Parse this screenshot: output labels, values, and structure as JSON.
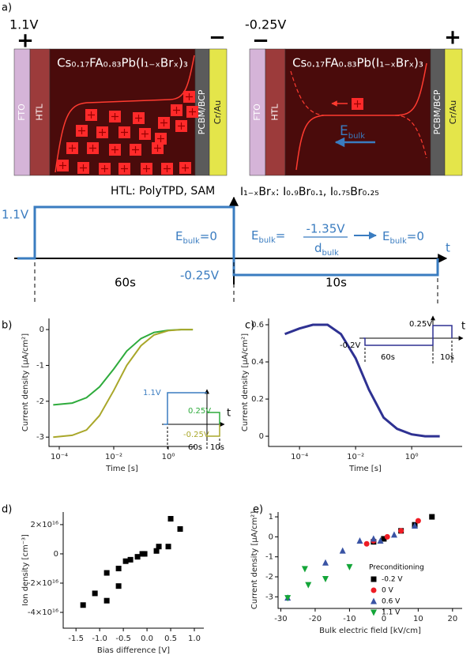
{
  "panel_a": {
    "label": "a)",
    "left_device": {
      "voltage": "1.1V",
      "plus": "+",
      "minus": "−"
    },
    "right_device": {
      "voltage": "-0.25V",
      "plus": "+",
      "minus": "−"
    },
    "layers": {
      "fto": "FTO",
      "htl": "HTL",
      "perovskite": "Cs₀.₁₇FA₀.₈₃Pb(I₁₋ₓBrₓ)₃",
      "etl": "PCBM/BCP",
      "electrode": "Cr/Au"
    },
    "e_field": {
      "symbol": "E",
      "subscript": "bulk"
    },
    "htl_note": "HTL: PolyTPD, SAM",
    "halide_note": "I₁₋ₓBrₓ: I₀.₉Br₀.₁, I₀.₇₅Br₀.₂₅",
    "waveform": {
      "high": "1.1V",
      "low": "-0.25V",
      "e_zero_symbol": "E",
      "e_zero_sub": "bulk",
      "e_zero_rest": "=0",
      "e_eq_symbol": "E",
      "e_eq_sub": "bulk",
      "e_eq_rest": "=",
      "numerator": "-1.35V",
      "den_symbol": "d",
      "den_sub": "bulk",
      "e_zero2_symbol": "E",
      "e_zero2_sub": "bulk",
      "e_zero2_rest": "=0",
      "t": "t",
      "first": "60s",
      "second": "10s"
    }
  },
  "chart_data": [
    {
      "type": "line",
      "panel_label": "b)",
      "x_label": "Time [s]",
      "y_label": "Current density [μA/cm²]",
      "xscale": "log",
      "xlim": [
        4.2e-05,
        9.7
      ],
      "ylim": [
        -3.26,
        0.31
      ],
      "xticks": [
        {
          "value": 0.0001,
          "label": "10⁻⁴"
        },
        {
          "value": 0.01,
          "label": "10⁻²"
        },
        {
          "value": 1,
          "label": "10⁰"
        }
      ],
      "yticks": [
        -3,
        -2,
        -1,
        0
      ],
      "x": [
        6e-05,
        0.0003,
        0.001,
        0.003,
        0.01,
        0.03,
        0.1,
        0.3,
        1,
        3,
        8
      ],
      "series": [
        {
          "color": "#2eab3c",
          "values": [
            -2.1,
            -2.05,
            -1.9,
            -1.6,
            -1.1,
            -0.6,
            -0.25,
            -0.08,
            -0.02,
            0,
            0
          ]
        },
        {
          "color": "#a9a72a",
          "values": [
            -3.0,
            -2.95,
            -2.8,
            -2.4,
            -1.7,
            -1.0,
            -0.45,
            -0.15,
            -0.03,
            0,
            0
          ]
        }
      ],
      "inset_labels": [
        "1.1V",
        "0.25V",
        "-0.25V",
        "60s",
        "10s",
        "t"
      ]
    },
    {
      "type": "line",
      "panel_label": "c)",
      "x_label": "Time [s]",
      "y_label": "Current density [μA/cm²]",
      "xscale": "log",
      "xlim": [
        7.9e-06,
        63
      ],
      "ylim": [
        -0.055,
        0.634
      ],
      "xticks": [
        {
          "value": 0.0001,
          "label": "10⁻⁴"
        },
        {
          "value": 0.01,
          "label": "10⁻²"
        },
        {
          "value": 1,
          "label": "10⁰"
        }
      ],
      "yticks": [
        0.0,
        0.2,
        0.4,
        0.6
      ],
      "x": [
        3e-05,
        0.0001,
        0.0003,
        0.001,
        0.003,
        0.01,
        0.03,
        0.1,
        0.3,
        1,
        3,
        10
      ],
      "series": [
        {
          "color": "#2e3192",
          "values": [
            0.55,
            0.58,
            0.6,
            0.6,
            0.55,
            0.42,
            0.25,
            0.1,
            0.04,
            0.01,
            0,
            0
          ]
        }
      ],
      "inset_labels": [
        "-0.2V",
        "0.25V",
        "60s",
        "10s",
        "t"
      ]
    },
    {
      "type": "scatter",
      "panel_label": "d)",
      "x_label": "Bias difference [V]",
      "y_label": "Ion density [cm⁻³]",
      "xlim": [
        -1.77,
        1.2
      ],
      "ylim": [
        -5.08e+16,
        2.86e+16
      ],
      "xticks": [
        {
          "value": -1.5,
          "label": "-1.5"
        },
        {
          "value": -1,
          "label": "-1.0"
        },
        {
          "value": -0.5,
          "label": "-0.5"
        },
        {
          "value": 0,
          "label": "0.0"
        },
        {
          "value": 0.5,
          "label": "0.5"
        },
        {
          "value": 1,
          "label": "1.0"
        }
      ],
      "yticks": [
        {
          "value": -4e+16,
          "label": "-4×10¹⁶"
        },
        {
          "value": -2e+16,
          "label": "-2×10¹⁶"
        },
        0,
        {
          "value": 2e+16,
          "label": "2×10¹⁶"
        }
      ],
      "series": [
        {
          "color": "#000000",
          "marker": "square",
          "x": [
            -1.35,
            -1.1,
            -0.85,
            -0.85,
            -0.6,
            -0.6,
            -0.45,
            -0.35,
            -0.2,
            -0.1,
            -0.05,
            0.2,
            0.25,
            0.45,
            0.5,
            0.7
          ],
          "values": [
            -3.5e+16,
            -2.7e+16,
            -1.3e+16,
            -3.2e+16,
            -2.2e+16,
            -1e+16,
            -5000000000000000.0,
            -4000000000000000.0,
            -2000000000000000.0,
            0,
            0,
            2000000000000000.0,
            5000000000000000.0,
            5000000000000000.0,
            2.4e+16,
            1.7e+16
          ]
        }
      ]
    },
    {
      "type": "scatter",
      "panel_label": "e)",
      "x_label": "Bulk electric field [kV/cm]",
      "y_label": "Current density [μA/cm²]",
      "xlim": [
        -30.8,
        22.8
      ],
      "ylim": [
        -3.58,
        1.24
      ],
      "xticks": [
        -30,
        -20,
        -10,
        0,
        10,
        20
      ],
      "yticks": [
        -3,
        -2,
        -1,
        0,
        1
      ],
      "legend": "right",
      "legend_title": "Preconditioning",
      "series": [
        {
          "name": "-0.2 V",
          "color": "#000000",
          "marker": "square",
          "x": [
            -3,
            0,
            5,
            9,
            14
          ],
          "values": [
            -0.25,
            -0.1,
            0.3,
            0.6,
            1.0
          ]
        },
        {
          "name": "0 V",
          "color": "#ee1c24",
          "marker": "circle",
          "x": [
            -5,
            -3,
            1,
            5,
            10
          ],
          "values": [
            -0.35,
            -0.2,
            0,
            0.3,
            0.8
          ]
        },
        {
          "name": "0.6 V",
          "color": "#3953a4",
          "marker": "triangle-up",
          "x": [
            -28,
            -17,
            -12,
            -7,
            -3,
            -1,
            3,
            9
          ],
          "values": [
            -3.05,
            -1.3,
            -0.7,
            -0.2,
            -0.1,
            -0.2,
            0.1,
            0.55
          ]
        },
        {
          "name": "1.1 V",
          "color": "#13a538",
          "marker": "triangle-down",
          "x": [
            -28,
            -22,
            -17,
            -10,
            -23
          ],
          "values": [
            -3.05,
            -2.4,
            -2.1,
            -1.5,
            -1.6
          ]
        }
      ]
    }
  ]
}
